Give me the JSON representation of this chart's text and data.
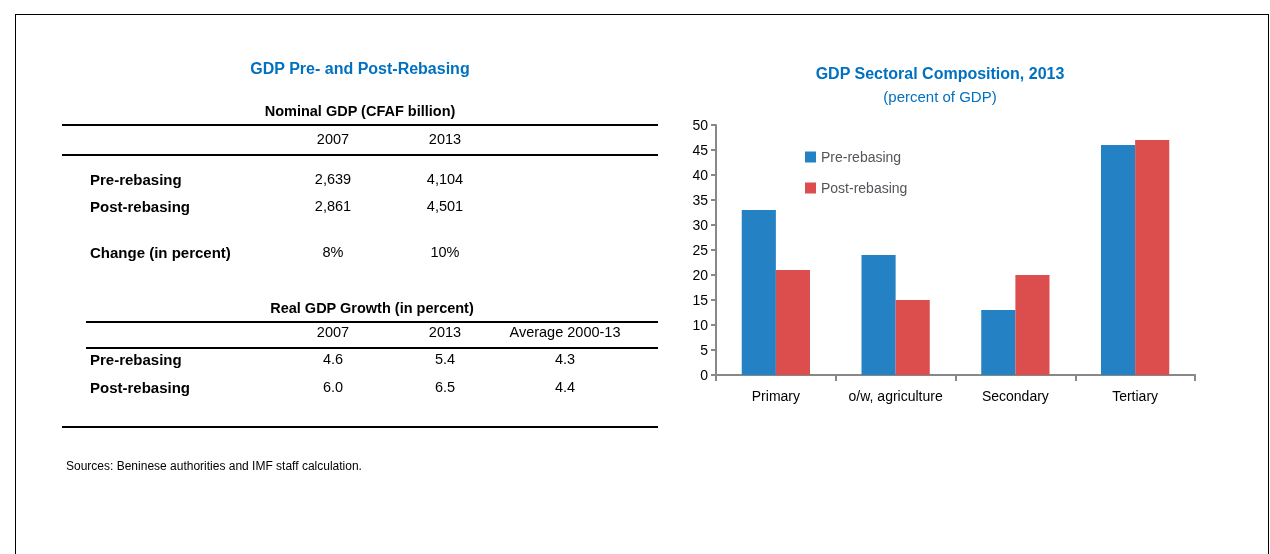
{
  "chart_data": [
    {
      "type": "other",
      "title": "GDP Pre- and Post-Rebasing",
      "subtitle": "Nominal GDP (CFAF billion)",
      "categories": [
        "2007",
        "2013"
      ],
      "y_categories": [
        "Pre-rebasing",
        "Post-rebasing",
        "Change (in percent)"
      ],
      "cell_labels": [
        [
          "2,639",
          "4,104"
        ],
        [
          "2,861",
          "4,501"
        ],
        [
          "8%",
          "10%"
        ]
      ]
    },
    {
      "type": "other",
      "title": "Real GDP Growth (in percent)",
      "categories": [
        "2007",
        "2013",
        "Average 2000-13"
      ],
      "y_categories": [
        "Pre-rebasing",
        "Post-rebasing"
      ],
      "cell_labels": [
        [
          "4.6",
          "5.4",
          "4.3"
        ],
        [
          "6.0",
          "6.5",
          "4.4"
        ]
      ],
      "annotations": [
        "Sources: Beninese authorities and IMF staff calculation."
      ]
    },
    {
      "type": "bar",
      "title": "GDP Sectoral Composition, 2013",
      "subtitle": "(percent of GDP)",
      "categories": [
        "Primary",
        "o/w, agriculture",
        "Secondary",
        "Tertiary"
      ],
      "series": [
        {
          "name": "Pre-rebasing",
          "color": "#2381c4",
          "values": [
            33,
            24,
            13,
            46
          ]
        },
        {
          "name": "Post-rebasing",
          "color": "#dc4e4e",
          "values": [
            21,
            15,
            20,
            47
          ]
        }
      ],
      "ylim": [
        0,
        50
      ],
      "yticks": [
        0,
        5,
        10,
        15,
        20,
        25,
        30,
        35,
        40,
        45,
        50
      ],
      "grid": false,
      "legend": "top left"
    }
  ]
}
